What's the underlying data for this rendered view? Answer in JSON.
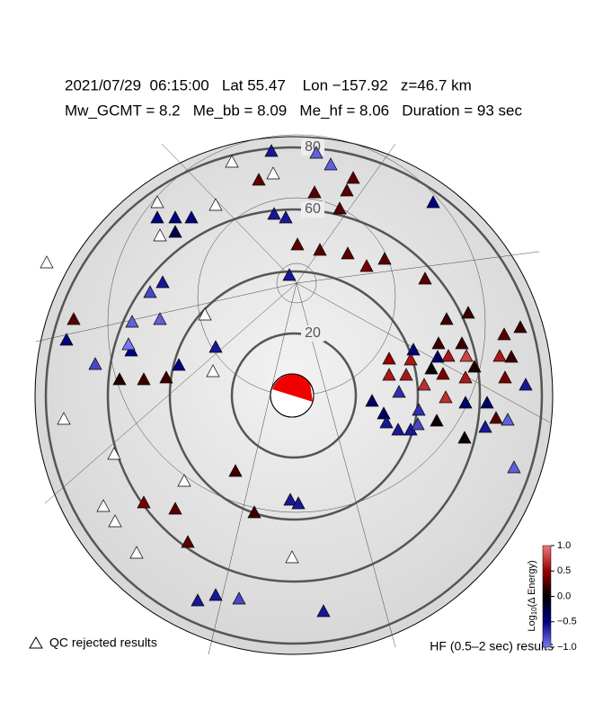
{
  "header": {
    "line1": "2021/07/29  06:15:00   Lat 55.47    Lon −157.92   z=46.7 km",
    "line2": "Mw_GCMT = 8.2   Me_bb = 8.09   Me_hf = 8.06   Duration = 93 sec"
  },
  "ring_labels": [
    20,
    60,
    80
  ],
  "stations": {
    "values": [
      null,
      null,
      null,
      null,
      null,
      null,
      null,
      null,
      null,
      null,
      null,
      null,
      null,
      null,
      null,
      -0.6,
      -0.9,
      -0.9,
      0.3,
      0.3,
      0.3,
      0.3,
      0.3,
      -0.5,
      -0.6,
      -0.6,
      -0.5,
      -0.5,
      -0.5,
      -0.3,
      0.3,
      0.3,
      0.3,
      0.4,
      0.3,
      0.3,
      -0.6,
      -0.8,
      -0.6,
      -0.9,
      -0.9,
      0.3,
      -0.5,
      -0.5,
      -1.0,
      -0.6,
      -0.8,
      -0.5,
      0.1,
      0.2,
      0.2,
      0.2,
      0.2,
      0.2,
      0.3,
      0.2,
      0.2,
      -0.5,
      0.5,
      0.6,
      -0.4,
      0.05,
      0.6,
      0.8,
      0.1,
      0.6,
      0.2,
      0.4,
      -0.6,
      0.6,
      0.6,
      0.7,
      0.4,
      0.6,
      0.7,
      -0.7,
      -0.4,
      -0.4,
      -0.7,
      -0.4,
      -0.4,
      -0.9,
      0.3,
      -0.6,
      -0.6,
      -0.6,
      0.05,
      -0.8,
      -0.6,
      0.05,
      -0.9,
      0.2,
      0.4,
      0.3,
      -0.6,
      -0.6,
      0.2,
      0.3,
      -0.6,
      -0.6,
      -0.8,
      -0.6
    ]
  },
  "legend": {
    "qc_label": "QC rejected results",
    "hf_label": "HF (0.5–2 sec) results"
  },
  "colorbar": {
    "label_base": "Log",
    "label_sub": "10",
    "label_rest": "(Δ Energy)",
    "ticks": [
      {
        "value": 1.0,
        "label": "1.0"
      },
      {
        "value": 0.5,
        "label": "0.5"
      },
      {
        "value": 0.0,
        "label": "0.0"
      },
      {
        "value": -0.5,
        "label": "−0.5"
      },
      {
        "value": -1.0,
        "label": "−1.0"
      }
    ]
  }
}
